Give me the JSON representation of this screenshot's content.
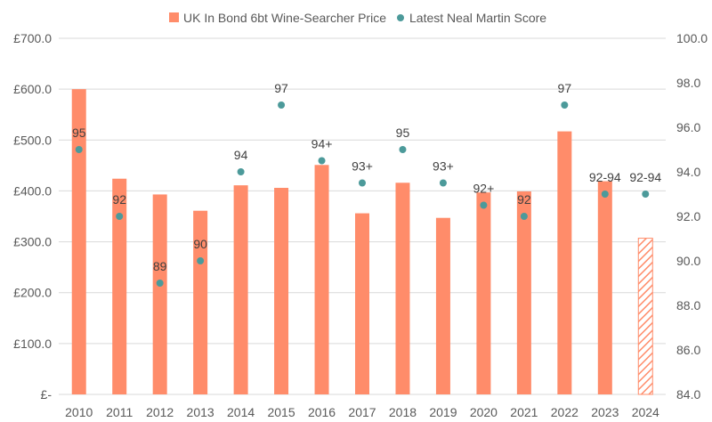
{
  "chart_data": {
    "type": "bar",
    "categories": [
      "2010",
      "2011",
      "2012",
      "2013",
      "2014",
      "2015",
      "2016",
      "2017",
      "2018",
      "2019",
      "2020",
      "2021",
      "2022",
      "2023",
      "2024"
    ],
    "series": [
      {
        "name": "UK In Bond 6bt Wine-Searcher Price",
        "type": "bar",
        "axis": "left",
        "color": "#FF8C6A",
        "values": [
          600,
          424,
          393,
          361,
          411,
          406,
          451,
          356,
          416,
          347,
          397,
          399,
          517,
          419,
          307
        ],
        "hatched_last": true
      },
      {
        "name": "Latest Neal Martin Score",
        "type": "scatter",
        "axis": "right",
        "color": "#4C9A9A",
        "values": [
          95,
          92,
          89,
          90,
          94,
          97,
          94.5,
          93.5,
          95,
          93.5,
          92.5,
          92,
          97,
          93,
          93
        ],
        "labels": [
          "95",
          "92",
          "89",
          "90",
          "94",
          "97",
          "94+",
          "93+",
          "95",
          "93+",
          "92+",
          "92",
          "97",
          "92-94",
          "92-94"
        ]
      }
    ],
    "y_left": {
      "min": 0,
      "max": 700,
      "step": 100,
      "ticks": [
        "£-",
        "£100.0",
        "£200.0",
        "£300.0",
        "£400.0",
        "£500.0",
        "£600.0",
        "£700.0"
      ]
    },
    "y_right": {
      "min": 84,
      "max": 100,
      "step": 2,
      "ticks": [
        "84.0",
        "86.0",
        "88.0",
        "90.0",
        "92.0",
        "94.0",
        "96.0",
        "98.0",
        "100.0"
      ]
    },
    "grid": true,
    "legend_position": "top-center"
  }
}
